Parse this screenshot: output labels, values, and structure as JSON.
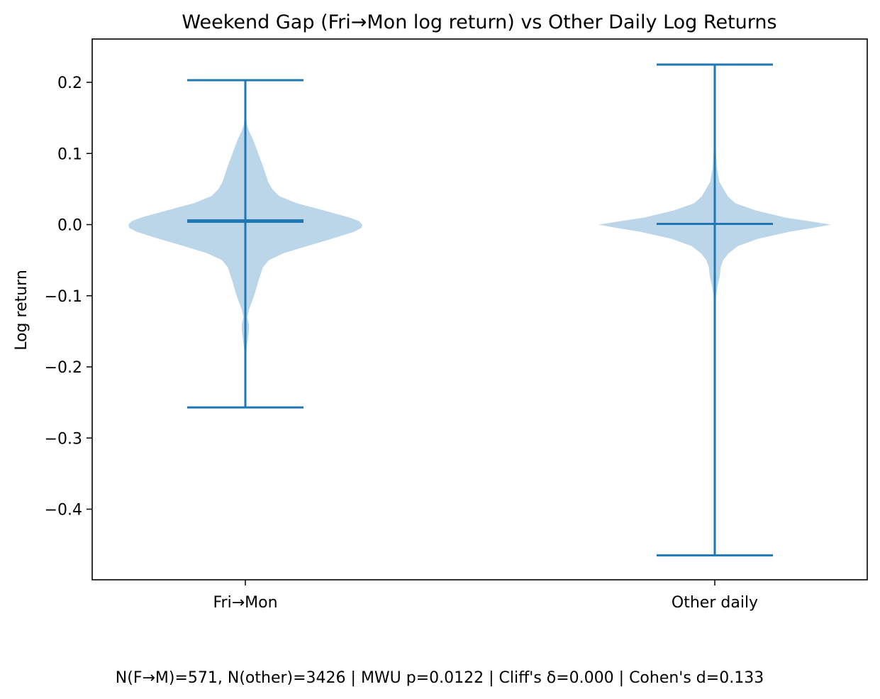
{
  "chart_data": {
    "type": "violin",
    "title": "Weekend Gap (Fri→Mon log return) vs Other Daily Log Returns",
    "xlabel": "",
    "ylabel": "Log return",
    "ylim": [
      -0.49,
      0.26
    ],
    "yticks": [
      0.2,
      0.1,
      0.0,
      -0.1,
      -0.2,
      -0.3,
      -0.4
    ],
    "ytick_labels": [
      "0.2",
      "0.1",
      "0.0",
      "−0.1",
      "−0.2",
      "−0.3",
      "−0.4"
    ],
    "categories": [
      "Fri→Mon",
      "Other daily"
    ],
    "grid": false,
    "violin_color": "#1f77b4",
    "violin_fill_opacity": 0.3,
    "violins": [
      {
        "category": "Fri→Mon",
        "max": 0.203,
        "min": -0.257,
        "median": 0.005,
        "density_profile": [
          [
            0.203,
            0.0
          ],
          [
            0.19,
            0.002
          ],
          [
            0.17,
            0.004
          ],
          [
            0.15,
            0.008
          ],
          [
            0.14,
            0.014
          ],
          [
            0.13,
            0.035
          ],
          [
            0.12,
            0.065
          ],
          [
            0.1,
            0.11
          ],
          [
            0.08,
            0.155
          ],
          [
            0.06,
            0.195
          ],
          [
            0.05,
            0.23
          ],
          [
            0.04,
            0.29
          ],
          [
            0.03,
            0.44
          ],
          [
            0.02,
            0.67
          ],
          [
            0.01,
            0.89
          ],
          [
            0.005,
            0.97
          ],
          [
            0.0,
            1.0
          ],
          [
            -0.005,
            0.99
          ],
          [
            -0.01,
            0.93
          ],
          [
            -0.02,
            0.74
          ],
          [
            -0.03,
            0.53
          ],
          [
            -0.04,
            0.33
          ],
          [
            -0.05,
            0.2
          ],
          [
            -0.06,
            0.15
          ],
          [
            -0.08,
            0.11
          ],
          [
            -0.1,
            0.075
          ],
          [
            -0.12,
            0.03
          ],
          [
            -0.13,
            0.017
          ],
          [
            -0.14,
            0.03
          ],
          [
            -0.15,
            0.03
          ],
          [
            -0.16,
            0.022
          ],
          [
            -0.18,
            0.006
          ],
          [
            -0.2,
            0.003
          ],
          [
            -0.23,
            0.001
          ],
          [
            -0.257,
            0.0
          ]
        ]
      },
      {
        "category": "Other daily",
        "max": 0.225,
        "min": -0.465,
        "median": 0.001,
        "density_profile": [
          [
            0.225,
            0.0
          ],
          [
            0.2,
            0.001
          ],
          [
            0.15,
            0.002
          ],
          [
            0.12,
            0.005
          ],
          [
            0.1,
            0.011
          ],
          [
            0.08,
            0.018
          ],
          [
            0.06,
            0.04
          ],
          [
            0.05,
            0.075
          ],
          [
            0.04,
            0.11
          ],
          [
            0.03,
            0.175
          ],
          [
            0.02,
            0.35
          ],
          [
            0.01,
            0.6
          ],
          [
            0.005,
            0.8
          ],
          [
            0.0,
            0.99
          ],
          [
            -0.005,
            0.83
          ],
          [
            -0.01,
            0.64
          ],
          [
            -0.02,
            0.37
          ],
          [
            -0.03,
            0.2
          ],
          [
            -0.04,
            0.12
          ],
          [
            -0.05,
            0.072
          ],
          [
            -0.06,
            0.05
          ],
          [
            -0.07,
            0.045
          ],
          [
            -0.08,
            0.032
          ],
          [
            -0.09,
            0.02
          ],
          [
            -0.1,
            0.011
          ],
          [
            -0.12,
            0.003
          ],
          [
            -0.15,
            0.001
          ],
          [
            -0.2,
            0.0005
          ],
          [
            -0.465,
            0.0
          ]
        ]
      }
    ],
    "footer": "N(F→M)=571, N(other)=3426 | MWU p=0.0122 | Cliff's δ=0.000 | Cohen's d=0.133"
  }
}
